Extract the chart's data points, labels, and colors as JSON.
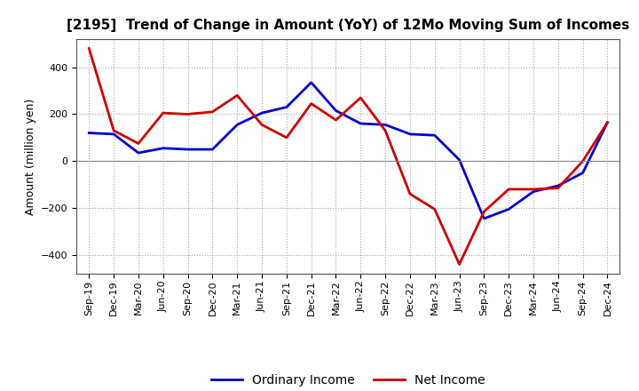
{
  "title": "[2195]  Trend of Change in Amount (YoY) of 12Mo Moving Sum of Incomes",
  "ylabel": "Amount (million yen)",
  "x_labels": [
    "Sep-19",
    "Dec-19",
    "Mar-20",
    "Jun-20",
    "Sep-20",
    "Dec-20",
    "Mar-21",
    "Jun-21",
    "Sep-21",
    "Dec-21",
    "Mar-22",
    "Jun-22",
    "Sep-22",
    "Dec-22",
    "Mar-23",
    "Jun-23",
    "Sep-23",
    "Dec-23",
    "Mar-24",
    "Jun-24",
    "Sep-24",
    "Dec-24"
  ],
  "ordinary_income": [
    120,
    115,
    35,
    55,
    50,
    50,
    155,
    205,
    230,
    335,
    215,
    160,
    155,
    115,
    110,
    5,
    -245,
    -205,
    -130,
    -105,
    -50,
    165
  ],
  "net_income": [
    480,
    130,
    75,
    205,
    200,
    210,
    280,
    155,
    100,
    245,
    175,
    270,
    130,
    -140,
    -205,
    -440,
    -215,
    -120,
    -120,
    -115,
    0,
    165
  ],
  "ordinary_color": "#0000cc",
  "net_color": "#cc0000",
  "background_color": "#ffffff",
  "grid_color": "#aaaaaa",
  "ylim": [
    -480,
    520
  ],
  "yticks": [
    -400,
    -200,
    0,
    200,
    400
  ],
  "legend_labels": [
    "Ordinary Income",
    "Net Income"
  ],
  "line_width": 2.0,
  "title_fontsize": 11,
  "ylabel_fontsize": 9,
  "tick_fontsize": 8,
  "legend_fontsize": 10
}
